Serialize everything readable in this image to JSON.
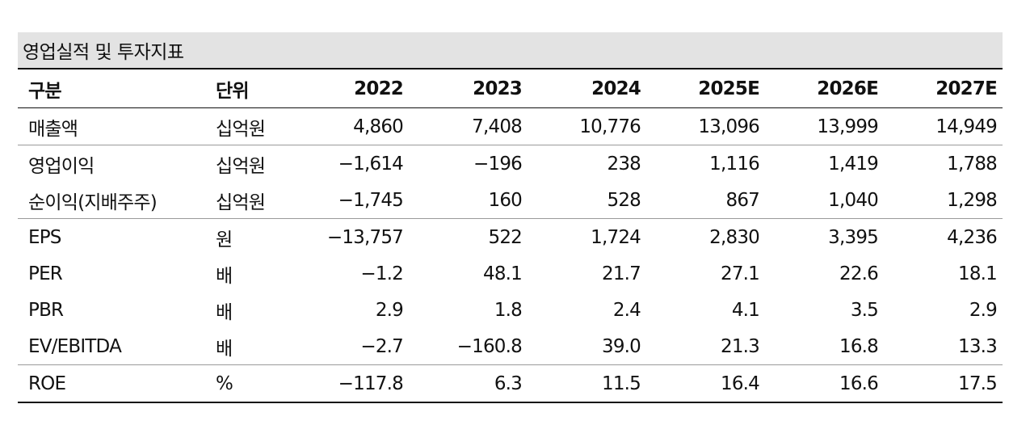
{
  "title": "영업실적 및 투자지표",
  "header": {
    "label": "구분",
    "unit": "단위",
    "years": [
      "2022",
      "2023",
      "2024",
      "2025E",
      "2026E",
      "2027E"
    ]
  },
  "rows": [
    {
      "label": "매출액",
      "unit": "십억원",
      "values": [
        "4,860",
        "7,408",
        "10,776",
        "13,096",
        "13,999",
        "14,949"
      ]
    },
    {
      "label": "영업이익",
      "unit": "십억원",
      "values": [
        "−1,614",
        "−196",
        "238",
        "1,116",
        "1,419",
        "1,788"
      ]
    },
    {
      "label": "순이익(지배주주)",
      "unit": "십억원",
      "values": [
        "−1,745",
        "160",
        "528",
        "867",
        "1,040",
        "1,298"
      ]
    },
    {
      "label": "EPS",
      "unit": "원",
      "values": [
        "−13,757",
        "522",
        "1,724",
        "2,830",
        "3,395",
        "4,236"
      ]
    },
    {
      "label": "PER",
      "unit": "배",
      "values": [
        "−1.2",
        "48.1",
        "21.7",
        "27.1",
        "22.6",
        "18.1"
      ]
    },
    {
      "label": "PBR",
      "unit": "배",
      "values": [
        "2.9",
        "1.8",
        "2.4",
        "4.1",
        "3.5",
        "2.9"
      ]
    },
    {
      "label": "EV/EBITDA",
      "unit": "배",
      "values": [
        "−2.7",
        "−160.8",
        "39.0",
        "21.3",
        "16.8",
        "13.3"
      ]
    },
    {
      "label": "ROE",
      "unit": "%",
      "values": [
        "−117.8",
        "6.3",
        "11.5",
        "16.4",
        "16.6",
        "17.5"
      ]
    }
  ]
}
